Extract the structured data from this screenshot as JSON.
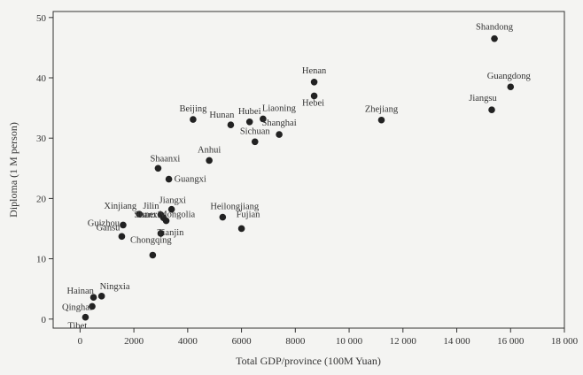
{
  "chart_data": {
    "type": "scatter",
    "title": "",
    "xlabel": "Total GDP/province (100M Yuan)",
    "ylabel": "Diploma (1 M person)",
    "xlim": [
      -1000,
      18000
    ],
    "ylim": [
      -1.5,
      51
    ],
    "xticks": [
      0,
      2000,
      4000,
      6000,
      8000,
      10000,
      12000,
      14000,
      16000,
      18000
    ],
    "xtick_labels": [
      "0",
      "2000",
      "4000",
      "6000",
      "8000",
      "10 000",
      "12 000",
      "14 000",
      "16 000",
      "18 000"
    ],
    "yticks": [
      0,
      10,
      20,
      30,
      40,
      50
    ],
    "ytick_labels": [
      "0",
      "10",
      "20",
      "30",
      "40",
      "50"
    ],
    "grid": false,
    "legend": "none",
    "points": [
      {
        "label": "Shandong",
        "x": 15400,
        "y": 46.5
      },
      {
        "label": "Guangdong",
        "x": 16000,
        "y": 38.5
      },
      {
        "label": "Jiangsu",
        "x": 15300,
        "y": 34.7
      },
      {
        "label": "Henan",
        "x": 8700,
        "y": 39.3
      },
      {
        "label": "Hebei",
        "x": 8700,
        "y": 37.0
      },
      {
        "label": "Zhejiang",
        "x": 11200,
        "y": 33.0
      },
      {
        "label": "Liaoning",
        "x": 6800,
        "y": 33.2
      },
      {
        "label": "Hubei",
        "x": 6300,
        "y": 32.7
      },
      {
        "label": "Hunan",
        "x": 5600,
        "y": 32.2
      },
      {
        "label": "Beijing",
        "x": 4200,
        "y": 33.1
      },
      {
        "label": "Shanghai",
        "x": 7400,
        "y": 30.6
      },
      {
        "label": "Sichuan",
        "x": 6500,
        "y": 29.4
      },
      {
        "label": "Anhui",
        "x": 4800,
        "y": 26.3
      },
      {
        "label": "Shaanxi",
        "x": 2900,
        "y": 25.0
      },
      {
        "label": "Guangxi",
        "x": 3300,
        "y": 23.2
      },
      {
        "label": "Jiangxi",
        "x": 3400,
        "y": 18.2
      },
      {
        "label": "Xinjiang",
        "x": 2200,
        "y": 17.4
      },
      {
        "label": "Jilin",
        "x": 3000,
        "y": 17.3
      },
      {
        "label": "Shanxi",
        "x": 3100,
        "y": 16.8
      },
      {
        "label": "Inner Mongolia",
        "x": 3200,
        "y": 16.3
      },
      {
        "label": "Guizhou",
        "x": 1600,
        "y": 15.6
      },
      {
        "label": "Tianjin",
        "x": 3000,
        "y": 14.2
      },
      {
        "label": "Gansu",
        "x": 1550,
        "y": 13.7
      },
      {
        "label": "Heilongjiang",
        "x": 5300,
        "y": 16.9
      },
      {
        "label": "Fujian",
        "x": 6000,
        "y": 15.0
      },
      {
        "label": "Chongqing",
        "x": 2700,
        "y": 10.6
      },
      {
        "label": "Ningxia",
        "x": 800,
        "y": 3.8
      },
      {
        "label": "Hainan",
        "x": 500,
        "y": 3.6
      },
      {
        "label": "Qinghai",
        "x": 450,
        "y": 2.1
      },
      {
        "label": "Tibet",
        "x": 200,
        "y": 0.3
      }
    ]
  }
}
